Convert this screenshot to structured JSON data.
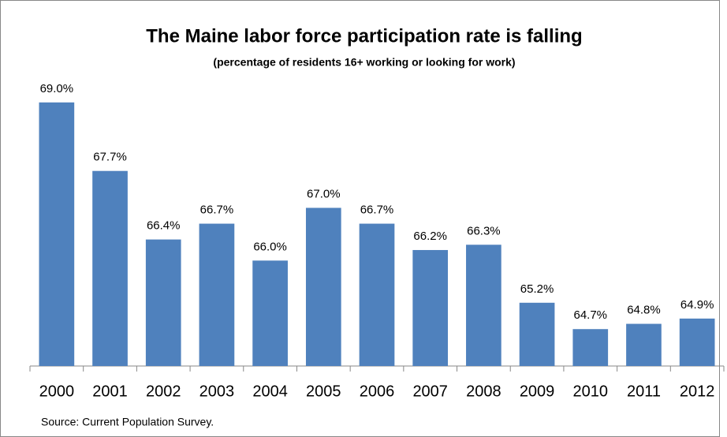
{
  "chart_data": {
    "type": "bar",
    "title": "The Maine labor force participation rate is falling",
    "subtitle": "(percentage of residents 16+ working or looking for work)",
    "source": "Source: Current Population Survey.",
    "categories": [
      "2000",
      "2001",
      "2002",
      "2003",
      "2004",
      "2005",
      "2006",
      "2007",
      "2008",
      "2009",
      "2010",
      "2011",
      "2012"
    ],
    "values": [
      69.0,
      67.7,
      66.4,
      66.7,
      66.0,
      67.0,
      66.7,
      66.2,
      66.3,
      65.2,
      64.7,
      64.8,
      64.9
    ],
    "value_labels": [
      "69.0%",
      "67.7%",
      "66.4%",
      "66.7%",
      "66.0%",
      "67.0%",
      "66.7%",
      "66.2%",
      "66.3%",
      "65.2%",
      "64.7%",
      "64.8%",
      "64.9%"
    ],
    "color": "#4f81bd",
    "ylim": [
      64,
      70
    ]
  }
}
